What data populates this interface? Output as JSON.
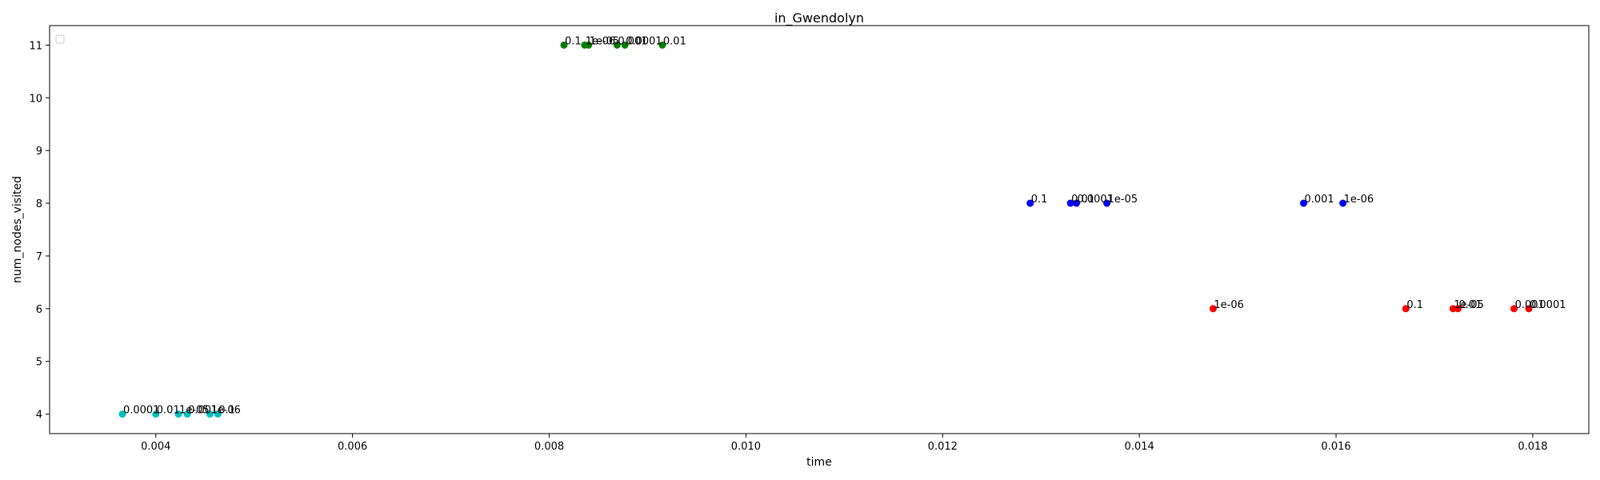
{
  "chart_data": {
    "type": "scatter",
    "title": "in_Gwendolyn",
    "xlabel": "time",
    "ylabel": "num_nodes_visited",
    "xlim": [
      0.00292,
      0.01857
    ],
    "ylim": [
      3.63,
      11.37
    ],
    "xticks": [
      0.004,
      0.006,
      0.008,
      0.01,
      0.012,
      0.014,
      0.016,
      0.018
    ],
    "xtick_labels": [
      "0.004",
      "0.006",
      "0.008",
      "0.010",
      "0.012",
      "0.014",
      "0.016",
      "0.018"
    ],
    "yticks": [
      4,
      5,
      6,
      7,
      8,
      9,
      10,
      11
    ],
    "ytick_labels": [
      "4",
      "5",
      "6",
      "7",
      "8",
      "9",
      "10",
      "11"
    ],
    "grid": false,
    "legend": "top-left (empty)",
    "series": [
      {
        "color": "#00bfbf",
        "points": [
          {
            "x": 0.00366,
            "y": 4,
            "label": "0.0001"
          },
          {
            "x": 0.004,
            "y": 4,
            "label": "0.01"
          },
          {
            "x": 0.00423,
            "y": 4,
            "label": "1e-05"
          },
          {
            "x": 0.00432,
            "y": 4,
            "label": "0.001"
          },
          {
            "x": 0.00455,
            "y": 4,
            "label": "1e-06"
          },
          {
            "x": 0.00463,
            "y": 4,
            "label": "0.1"
          }
        ]
      },
      {
        "color": "#008000",
        "points": [
          {
            "x": 0.00815,
            "y": 11,
            "label": "0.1"
          },
          {
            "x": 0.00836,
            "y": 11,
            "label": "1e-06"
          },
          {
            "x": 0.0084,
            "y": 11,
            "label": "1e-05"
          },
          {
            "x": 0.00869,
            "y": 11,
            "label": "0.001"
          },
          {
            "x": 0.00877,
            "y": 11,
            "label": "0.0001"
          },
          {
            "x": 0.00915,
            "y": 11,
            "label": "0.01"
          }
        ]
      },
      {
        "color": "#0000ff",
        "points": [
          {
            "x": 0.01289,
            "y": 8,
            "label": "0.1"
          },
          {
            "x": 0.0133,
            "y": 8,
            "label": "0.01"
          },
          {
            "x": 0.01336,
            "y": 8,
            "label": "0.0001"
          },
          {
            "x": 0.01367,
            "y": 8,
            "label": "1e-05"
          },
          {
            "x": 0.01567,
            "y": 8,
            "label": "0.001"
          },
          {
            "x": 0.01607,
            "y": 8,
            "label": "1e-06"
          }
        ]
      },
      {
        "color": "#ff0000",
        "points": [
          {
            "x": 0.01475,
            "y": 6,
            "label": "1e-06"
          },
          {
            "x": 0.01671,
            "y": 6,
            "label": "0.1"
          },
          {
            "x": 0.01719,
            "y": 6,
            "label": "1e-05"
          },
          {
            "x": 0.01724,
            "y": 6,
            "label": "0.01"
          },
          {
            "x": 0.01781,
            "y": 6,
            "label": "0.001"
          },
          {
            "x": 0.01796,
            "y": 6,
            "label": "0.0001"
          }
        ]
      }
    ]
  }
}
